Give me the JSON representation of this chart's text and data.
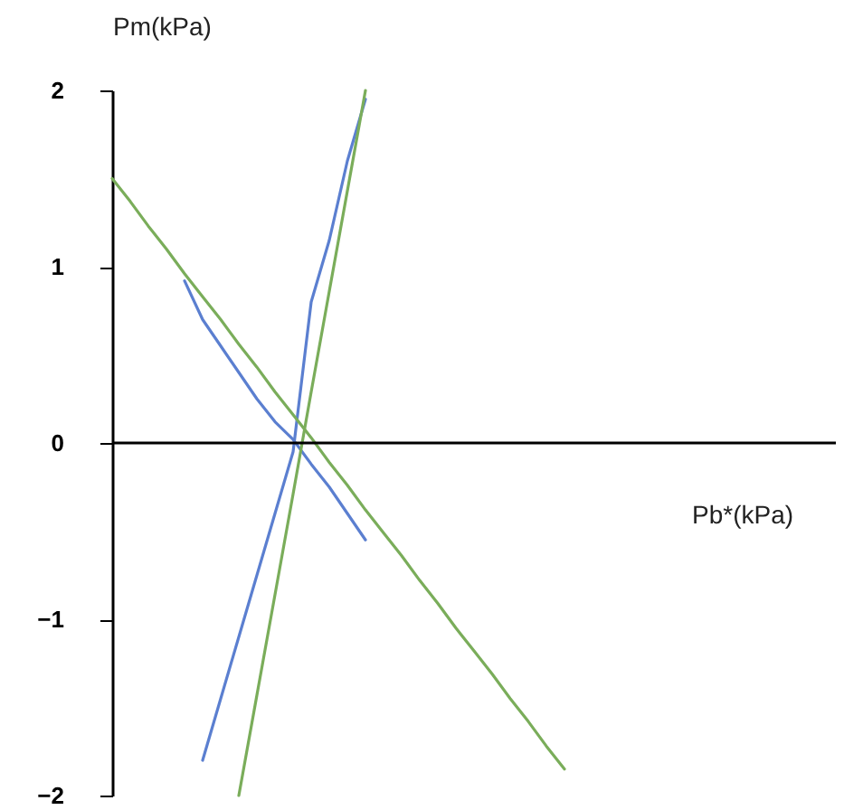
{
  "chart_data": {
    "type": "line",
    "xlabel": "Pb*(kPa)",
    "ylabel": "Pm(kPa)",
    "categories": [
      null,
      null,
      null,
      null,
      null,
      null,
      null,
      null,
      null,
      null,
      null,
      null,
      null,
      null,
      null,
      null,
      null,
      null,
      null,
      null,
      null,
      null,
      null,
      null,
      null,
      null,
      null,
      null,
      null,
      null,
      null,
      null,
      null,
      null,
      null,
      null,
      null,
      null,
      null,
      null,
      null
    ],
    "series": [
      {
        "color": "#5b7fd0",
        "values": [
          null,
          null,
          null,
          null,
          0.92,
          0.7,
          0.55,
          0.4,
          0.25,
          0.12,
          0.02,
          -0.12,
          -0.25,
          -0.4,
          -0.55,
          null,
          null,
          null,
          null,
          null,
          null,
          null,
          null,
          null,
          null,
          null,
          null,
          null,
          null,
          null,
          null,
          null,
          null,
          null,
          null,
          null,
          null,
          null,
          null,
          null,
          null
        ]
      },
      {
        "color": "#5b7fd0",
        "values": [
          null,
          null,
          null,
          null,
          null,
          -1.8,
          -1.45,
          -1.1,
          -0.75,
          -0.4,
          -0.05,
          0.8,
          1.15,
          1.6,
          1.95,
          null,
          null,
          null,
          null,
          null,
          null,
          null,
          null,
          null,
          null,
          null,
          null,
          null,
          null,
          null,
          null,
          null,
          null,
          null,
          null,
          null,
          null,
          null,
          null,
          null,
          null
        ]
      },
      {
        "color": "#7aad5a",
        "values": [
          1.5,
          1.37,
          1.23,
          1.1,
          0.96,
          0.83,
          0.7,
          0.56,
          0.43,
          0.29,
          0.16,
          0.03,
          -0.11,
          -0.24,
          -0.38,
          -0.51,
          -0.64,
          -0.78,
          -0.91,
          -1.05,
          -1.18,
          -1.31,
          -1.45,
          -1.58,
          -1.72,
          -1.85,
          null,
          null,
          null,
          null,
          null,
          null,
          null,
          null,
          null,
          null,
          null,
          null,
          null,
          null,
          null
        ]
      },
      {
        "color": "#7aad5a",
        "values": [
          null,
          null,
          null,
          null,
          null,
          null,
          null,
          -2.0,
          -1.43,
          -0.86,
          -0.29,
          0.29,
          0.86,
          1.43,
          2.0,
          null,
          null,
          null,
          null,
          null,
          null,
          null,
          null,
          null,
          null,
          null,
          null,
          null,
          null,
          null,
          null,
          null,
          null,
          null,
          null,
          null,
          null,
          null,
          null,
          null,
          null
        ]
      }
    ],
    "ref_lines": [
      {
        "axis": "y",
        "value": 0,
        "color": "#000000"
      }
    ],
    "ylim": [
      -2,
      2
    ],
    "yticks": [
      -2,
      -1,
      0,
      1,
      2
    ],
    "tick_labels": "y",
    "grid": false,
    "legend": false,
    "marker": "none",
    "line_style": "solid"
  }
}
